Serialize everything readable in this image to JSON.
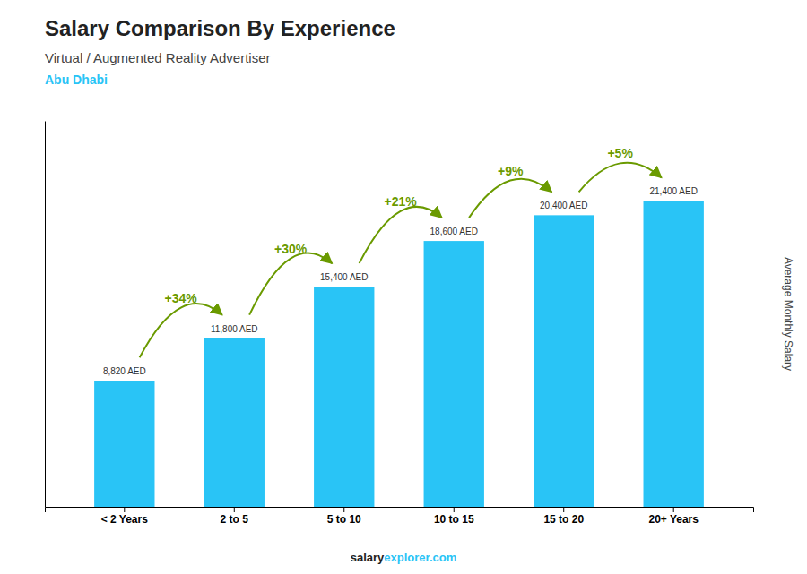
{
  "chart_data": {
    "type": "bar",
    "title": "Salary Comparison By Experience",
    "subtitle": [
      "Virtual / Augmented Reality Advertiser",
      "Abu Dhabi"
    ],
    "categories": [
      "< 2 Years",
      "2 to 5",
      "5 to 10",
      "10 to 15",
      "15 to 20",
      "20+ Years"
    ],
    "values": [
      8820,
      11800,
      15400,
      18600,
      20400,
      21400
    ],
    "value_labels": [
      "8,820 AED",
      "11,800 AED",
      "15,400 AED",
      "18,600 AED",
      "20,400 AED",
      "21,400 AED"
    ],
    "data_labels": true,
    "annotations": [
      "+34%",
      "+30%",
      "+21%",
      "+9%",
      "+5%"
    ],
    "color": "#29c4f6",
    "ylabel": "Average Monthly Salary",
    "ylim": [
      0,
      27000
    ],
    "tick_labels": "x",
    "grid": false,
    "footer": [
      "salary",
      "explorer.com"
    ]
  }
}
